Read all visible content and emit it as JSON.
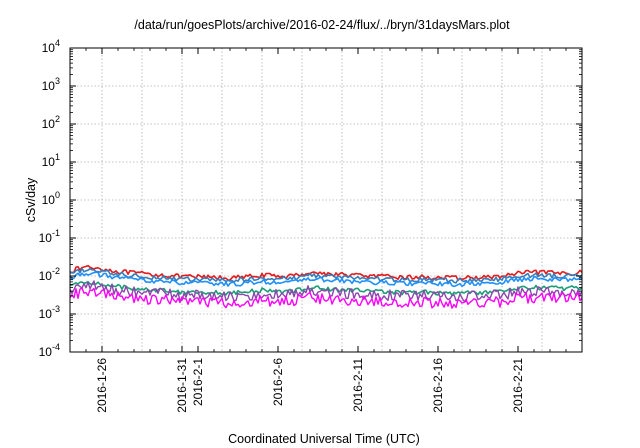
{
  "chart_data": {
    "type": "line",
    "title": "/data/run/goesPlots/archive/2016-02-24/flux/../bryn/31daysMars.plot",
    "xlabel": "Coordinated Universal Time (UTC)",
    "ylabel": "cSv/day",
    "yscale": "log",
    "ylim": [
      0.0001,
      10000
    ],
    "xlim": [
      "2016-01-24",
      "2016-02-25"
    ],
    "grid": true,
    "legend": "none",
    "y_ticks": [
      {
        "value": 0.0001,
        "base": "10",
        "exp": "-4"
      },
      {
        "value": 0.001,
        "base": "10",
        "exp": "-3"
      },
      {
        "value": 0.01,
        "base": "10",
        "exp": "-2"
      },
      {
        "value": 0.1,
        "base": "10",
        "exp": "-1"
      },
      {
        "value": 1,
        "base": "10",
        "exp": "0"
      },
      {
        "value": 10,
        "base": "10",
        "exp": "1"
      },
      {
        "value": 100,
        "base": "10",
        "exp": "2"
      },
      {
        "value": 1000,
        "base": "10",
        "exp": "3"
      },
      {
        "value": 10000,
        "base": "10",
        "exp": "4"
      }
    ],
    "x_ticks": [
      {
        "date": "2016-01-26",
        "label": "2016-1-26"
      },
      {
        "date": "2016-01-31",
        "label": "2016-1-31"
      },
      {
        "date": "2016-02-01",
        "label": "2016-2-1"
      },
      {
        "date": "2016-02-06",
        "label": "2016-2-6"
      },
      {
        "date": "2016-02-11",
        "label": "2016-2-11"
      },
      {
        "date": "2016-02-16",
        "label": "2016-2-16"
      },
      {
        "date": "2016-02-21",
        "label": "2016-2-21"
      }
    ],
    "x": [
      "2016-01-24",
      "2016-01-25",
      "2016-01-26",
      "2016-01-27",
      "2016-01-28",
      "2016-01-29",
      "2016-01-30",
      "2016-01-31",
      "2016-02-01",
      "2016-02-02",
      "2016-02-03",
      "2016-02-04",
      "2016-02-05",
      "2016-02-06",
      "2016-02-07",
      "2016-02-08",
      "2016-02-09",
      "2016-02-10",
      "2016-02-11",
      "2016-02-12",
      "2016-02-13",
      "2016-02-14",
      "2016-02-15",
      "2016-02-16",
      "2016-02-17",
      "2016-02-18",
      "2016-02-19",
      "2016-02-20",
      "2016-02-21",
      "2016-02-22",
      "2016-02-23",
      "2016-02-24",
      "2016-02-25"
    ],
    "series": [
      {
        "color": "#e41a1c",
        "values": [
          0.0135,
          0.0175,
          0.0155,
          0.013,
          0.012,
          0.011,
          0.0105,
          0.0095,
          0.0095,
          0.0092,
          0.0088,
          0.0095,
          0.0105,
          0.0098,
          0.0102,
          0.0125,
          0.0115,
          0.0108,
          0.0105,
          0.0098,
          0.0095,
          0.0092,
          0.0094,
          0.009,
          0.0088,
          0.009,
          0.0092,
          0.0098,
          0.0118,
          0.0125,
          0.012,
          0.0118,
          0.0125
        ]
      },
      {
        "color": "#377eb8",
        "values": [
          0.0115,
          0.015,
          0.0132,
          0.0112,
          0.0102,
          0.0094,
          0.009,
          0.0082,
          0.0081,
          0.0079,
          0.0075,
          0.0081,
          0.009,
          0.0084,
          0.0087,
          0.0106,
          0.0098,
          0.0092,
          0.009,
          0.0084,
          0.0081,
          0.0079,
          0.008,
          0.0077,
          0.0075,
          0.0077,
          0.0079,
          0.0084,
          0.0101,
          0.0106,
          0.0102,
          0.0101,
          0.0106
        ]
      },
      {
        "color": "#1e90ff",
        "values": [
          0.0092,
          0.012,
          0.0106,
          0.009,
          0.0082,
          0.0075,
          0.0072,
          0.0065,
          0.0065,
          0.0063,
          0.006,
          0.0065,
          0.0072,
          0.0067,
          0.007,
          0.0085,
          0.0079,
          0.0074,
          0.0072,
          0.0067,
          0.0065,
          0.0063,
          0.0064,
          0.0062,
          0.006,
          0.0062,
          0.0063,
          0.0067,
          0.0081,
          0.0085,
          0.0082,
          0.0081,
          0.0085
        ]
      },
      {
        "color": "#1b9e77",
        "values": [
          0.0055,
          0.007,
          0.0062,
          0.0052,
          0.0048,
          0.0044,
          0.0042,
          0.0038,
          0.0038,
          0.0037,
          0.0035,
          0.0038,
          0.0042,
          0.0039,
          0.0041,
          0.005,
          0.0046,
          0.0043,
          0.0042,
          0.0039,
          0.0038,
          0.0037,
          0.0038,
          0.0036,
          0.0035,
          0.0036,
          0.0037,
          0.0039,
          0.0047,
          0.005,
          0.0048,
          0.0047,
          0.005
        ]
      },
      {
        "color": "#8e44ad",
        "values": [
          0.0045,
          0.0058,
          0.005,
          0.0042,
          0.0039,
          0.0036,
          0.0034,
          0.0031,
          0.0031,
          0.003,
          0.0028,
          0.0031,
          0.0034,
          0.0032,
          0.0033,
          0.0041,
          0.0037,
          0.0035,
          0.0034,
          0.0032,
          0.0031,
          0.003,
          0.003,
          0.0029,
          0.0028,
          0.0029,
          0.003,
          0.0032,
          0.0038,
          0.0041,
          0.0039,
          0.0038,
          0.0041
        ]
      },
      {
        "color": "#ff00ff",
        "values": [
          0.003,
          0.004,
          0.0034,
          0.0028,
          0.0026,
          0.0024,
          0.0023,
          0.0021,
          0.0021,
          0.002,
          0.0019,
          0.0021,
          0.0023,
          0.0021,
          0.0022,
          0.0027,
          0.0025,
          0.0023,
          0.0023,
          0.0021,
          0.0021,
          0.002,
          0.002,
          0.0019,
          0.0019,
          0.0019,
          0.002,
          0.0021,
          0.0026,
          0.0027,
          0.0026,
          0.0026,
          0.0027
        ]
      }
    ]
  }
}
